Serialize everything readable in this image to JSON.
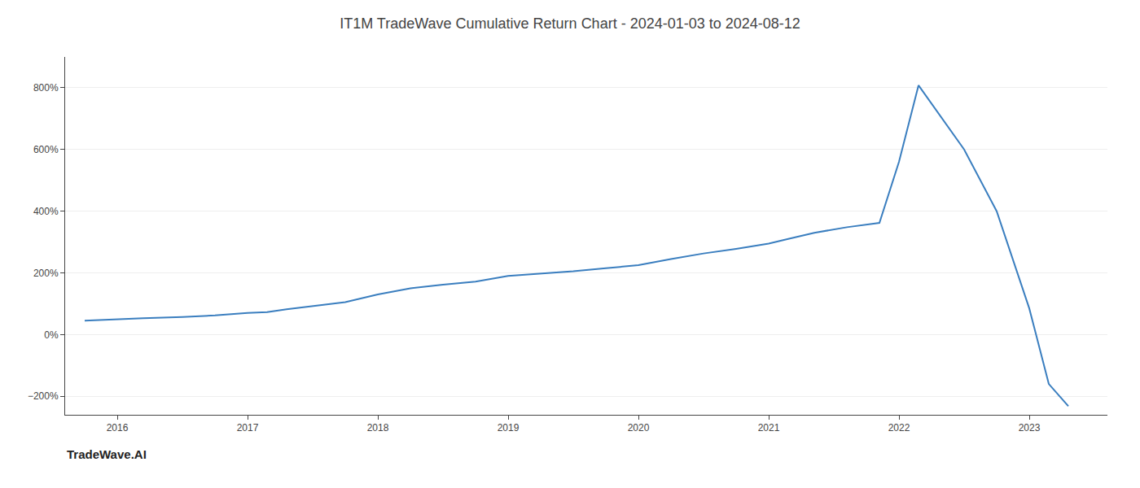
{
  "chart_data": {
    "type": "line",
    "title": "IT1M TradeWave Cumulative Return Chart - 2024-01-03 to 2024-08-12",
    "annotations": [
      "TradeWave.AI"
    ],
    "color": "#3a7ebf",
    "grid": "y",
    "x": [
      2015.75,
      2016.0,
      2016.2,
      2016.5,
      2016.75,
      2017.0,
      2017.15,
      2017.3,
      2017.5,
      2017.75,
      2018.0,
      2018.25,
      2018.5,
      2018.75,
      2019.0,
      2019.25,
      2019.5,
      2019.75,
      2020.0,
      2020.25,
      2020.5,
      2020.75,
      2021.0,
      2021.15,
      2021.35,
      2021.6,
      2021.85,
      2022.0,
      2022.15,
      2022.5,
      2022.75,
      2023.0,
      2023.15,
      2023.3
    ],
    "values": [
      45,
      50,
      53,
      57,
      62,
      70,
      73,
      82,
      92,
      105,
      130,
      150,
      162,
      172,
      190,
      198,
      205,
      215,
      225,
      245,
      263,
      278,
      295,
      310,
      330,
      348,
      362,
      560,
      808,
      600,
      400,
      85,
      -160,
      -232
    ],
    "xlim": [
      2015.6,
      2023.6
    ],
    "xticks": [
      2016,
      2017,
      2018,
      2019,
      2020,
      2021,
      2022,
      2023
    ],
    "ylim": [
      -260,
      900
    ],
    "yticks": [
      {
        "value": -200,
        "label": "−200%"
      },
      {
        "value": 0,
        "label": "0%"
      },
      {
        "value": 200,
        "label": "200%"
      },
      {
        "value": 400,
        "label": "400%"
      },
      {
        "value": 600,
        "label": "600%"
      },
      {
        "value": 800,
        "label": "800%"
      }
    ]
  }
}
